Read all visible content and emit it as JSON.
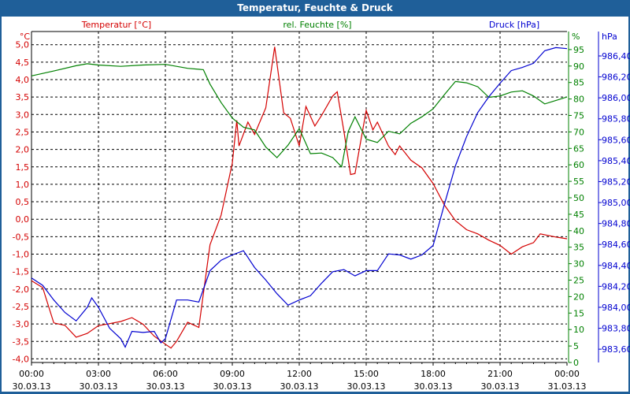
{
  "window": {
    "title": "Temperatur, Feuchte & Druck"
  },
  "chart_data": {
    "type": "line",
    "title": "Temperatur, Feuchte & Druck",
    "xlabel": "",
    "x_unit": "hours since 30.03.13 00:00",
    "xlim": [
      0,
      24
    ],
    "x_ticks": [
      {
        "h": 0,
        "time": "00:00",
        "date": "30.03.13"
      },
      {
        "h": 3,
        "time": "03:00",
        "date": "30.03.13"
      },
      {
        "h": 6,
        "time": "06:00",
        "date": "30.03.13"
      },
      {
        "h": 9,
        "time": "09:00",
        "date": "30.03.13"
      },
      {
        "h": 12,
        "time": "12:00",
        "date": "30.03.13"
      },
      {
        "h": 15,
        "time": "15:00",
        "date": "30.03.13"
      },
      {
        "h": 18,
        "time": "18:00",
        "date": "30.03.13"
      },
      {
        "h": 21,
        "time": "21:00",
        "date": "30.03.13"
      },
      {
        "h": 24,
        "time": "00:00",
        "date": "31.03.13"
      }
    ],
    "grid": true,
    "axes": {
      "temp": {
        "unit": "°C",
        "ylim": [
          -4.0,
          5.0
        ],
        "ticks": [
          "5,0",
          "4,5",
          "4,0",
          "3,5",
          "3,0",
          "2,5",
          "2,0",
          "1,5",
          "1,0",
          "0,5",
          "0,0",
          "-0,5",
          "-1,0",
          "-1,5",
          "-2,0",
          "-2,5",
          "-3,0",
          "-3,5",
          "-4,0"
        ],
        "tick_values": [
          5,
          4.5,
          4,
          3.5,
          3,
          2.5,
          2,
          1.5,
          1,
          0.5,
          0,
          -0.5,
          -1,
          -1.5,
          -2,
          -2.5,
          -3,
          -3.5,
          -4
        ]
      },
      "hum": {
        "unit": "%",
        "ylim": [
          0,
          95
        ],
        "ticks": [
          "95",
          "90",
          "85",
          "80",
          "75",
          "70",
          "65",
          "60",
          "55",
          "50",
          "45",
          "40",
          "35",
          "30",
          "25",
          "20",
          "15",
          "10",
          "5",
          "0"
        ],
        "tick_values": [
          95,
          90,
          85,
          80,
          75,
          70,
          65,
          60,
          55,
          50,
          45,
          40,
          35,
          30,
          25,
          20,
          15,
          10,
          5,
          0
        ]
      },
      "press": {
        "unit": "hPa",
        "ylim": [
          983.6,
          986.4
        ],
        "ticks": [
          "986,40",
          "986,20",
          "986,00",
          "985,80",
          "985,60",
          "985,40",
          "985,20",
          "985,00",
          "984,80",
          "984,60",
          "984,40",
          "984,20",
          "984,00",
          "983,80",
          "983,60"
        ],
        "tick_values": [
          986.4,
          986.2,
          986.0,
          985.8,
          985.6,
          985.4,
          985.2,
          985.0,
          984.8,
          984.6,
          984.4,
          984.2,
          984.0,
          983.8,
          983.6
        ]
      }
    },
    "series": [
      {
        "name": "Temperatur [°C]",
        "axis": "temp",
        "color": "#d40000",
        "points": [
          [
            0,
            -1.76
          ],
          [
            0.5,
            -1.96
          ],
          [
            1,
            -2.97
          ],
          [
            1.5,
            -3.04
          ],
          [
            2,
            -3.38
          ],
          [
            2.5,
            -3.27
          ],
          [
            3,
            -3.05
          ],
          [
            3.5,
            -2.99
          ],
          [
            4,
            -2.93
          ],
          [
            4.5,
            -2.82
          ],
          [
            5,
            -3.01
          ],
          [
            5.5,
            -3.35
          ],
          [
            6,
            -3.58
          ],
          [
            6.25,
            -3.69
          ],
          [
            6.5,
            -3.5
          ],
          [
            7,
            -2.95
          ],
          [
            7.5,
            -3.1
          ],
          [
            7.7,
            -2.14
          ],
          [
            8,
            -0.73
          ],
          [
            8.5,
            0.12
          ],
          [
            9,
            1.61
          ],
          [
            9.2,
            2.83
          ],
          [
            9.3,
            2.1
          ],
          [
            9.7,
            2.78
          ],
          [
            10,
            2.43
          ],
          [
            10.5,
            3.19
          ],
          [
            10.9,
            4.94
          ],
          [
            11.3,
            3.05
          ],
          [
            11.6,
            2.89
          ],
          [
            12,
            2.1
          ],
          [
            12.3,
            3.23
          ],
          [
            12.7,
            2.67
          ],
          [
            13,
            2.97
          ],
          [
            13.5,
            3.53
          ],
          [
            13.7,
            3.65
          ],
          [
            14,
            2.52
          ],
          [
            14.3,
            1.28
          ],
          [
            14.5,
            1.31
          ],
          [
            15,
            3.12
          ],
          [
            15.3,
            2.56
          ],
          [
            15.5,
            2.78
          ],
          [
            16,
            2.1
          ],
          [
            16.3,
            1.85
          ],
          [
            16.5,
            2.1
          ],
          [
            17,
            1.69
          ],
          [
            17.5,
            1.47
          ],
          [
            18,
            1.02
          ],
          [
            18.5,
            0.41
          ],
          [
            19,
            -0.04
          ],
          [
            19.5,
            -0.3
          ],
          [
            20,
            -0.42
          ],
          [
            20.5,
            -0.6
          ],
          [
            21,
            -0.75
          ],
          [
            21.5,
            -1.0
          ],
          [
            22,
            -0.79
          ],
          [
            22.5,
            -0.67
          ],
          [
            22.8,
            -0.42
          ],
          [
            23.5,
            -0.51
          ],
          [
            24,
            -0.56
          ]
        ]
      },
      {
        "name": "rel. Feuchte [%]",
        "axis": "hum",
        "color": "#008000",
        "points": [
          [
            0,
            87
          ],
          [
            1,
            88.5
          ],
          [
            2,
            90.1
          ],
          [
            2.5,
            90.7
          ],
          [
            3,
            90.3
          ],
          [
            4,
            89.9
          ],
          [
            5,
            90.3
          ],
          [
            6,
            90.5
          ],
          [
            7,
            89.3
          ],
          [
            7.7,
            88.9
          ],
          [
            8,
            84.5
          ],
          [
            8.5,
            78.9
          ],
          [
            9,
            74.2
          ],
          [
            9.5,
            71.4
          ],
          [
            10,
            70.6
          ],
          [
            10.5,
            65.4
          ],
          [
            11,
            62.2
          ],
          [
            11.5,
            66
          ],
          [
            12,
            71
          ],
          [
            12.5,
            63.4
          ],
          [
            13,
            63.6
          ],
          [
            13.5,
            62.2
          ],
          [
            13.9,
            59.4
          ],
          [
            14.2,
            70.2
          ],
          [
            14.5,
            74.6
          ],
          [
            15,
            67.8
          ],
          [
            15.5,
            66.8
          ],
          [
            16,
            70.2
          ],
          [
            16.5,
            69.4
          ],
          [
            17,
            72.6
          ],
          [
            17.5,
            74.6
          ],
          [
            18,
            77
          ],
          [
            18.5,
            81.3
          ],
          [
            19,
            85.3
          ],
          [
            19.5,
            84.9
          ],
          [
            20,
            83.7
          ],
          [
            20.5,
            80.5
          ],
          [
            21,
            80.9
          ],
          [
            21.5,
            82.1
          ],
          [
            22,
            82.5
          ],
          [
            22.5,
            80.9
          ],
          [
            23,
            78.5
          ],
          [
            24,
            80.6
          ]
        ]
      },
      {
        "name": "Druck [hPa]",
        "axis": "press",
        "color": "#0000d0",
        "points": [
          [
            0,
            984.28
          ],
          [
            0.5,
            984.21
          ],
          [
            1,
            984.07
          ],
          [
            1.5,
            983.95
          ],
          [
            2,
            983.87
          ],
          [
            2.5,
            984.0
          ],
          [
            2.7,
            984.09
          ],
          [
            3,
            984.0
          ],
          [
            3.5,
            983.8
          ],
          [
            4,
            983.7
          ],
          [
            4.2,
            983.62
          ],
          [
            4.5,
            983.77
          ],
          [
            5,
            983.76
          ],
          [
            5.5,
            983.77
          ],
          [
            5.8,
            983.66
          ],
          [
            6,
            983.7
          ],
          [
            6.5,
            984.07
          ],
          [
            7,
            984.07
          ],
          [
            7.5,
            984.05
          ],
          [
            8,
            984.35
          ],
          [
            8.5,
            984.45
          ],
          [
            9,
            984.5
          ],
          [
            9.5,
            984.54
          ],
          [
            10,
            984.38
          ],
          [
            10.5,
            984.26
          ],
          [
            11,
            984.13
          ],
          [
            11.5,
            984.02
          ],
          [
            12,
            984.07
          ],
          [
            12.5,
            984.11
          ],
          [
            13,
            984.23
          ],
          [
            13.5,
            984.34
          ],
          [
            14,
            984.36
          ],
          [
            14.5,
            984.3
          ],
          [
            15,
            984.35
          ],
          [
            15.5,
            984.35
          ],
          [
            16,
            984.51
          ],
          [
            16.5,
            984.5
          ],
          [
            17,
            984.46
          ],
          [
            17.5,
            984.5
          ],
          [
            18,
            984.59
          ],
          [
            18.5,
            984.98
          ],
          [
            19,
            985.35
          ],
          [
            19.5,
            985.63
          ],
          [
            20,
            985.86
          ],
          [
            20.5,
            986.01
          ],
          [
            21,
            986.14
          ],
          [
            21.5,
            986.26
          ],
          [
            22,
            986.29
          ],
          [
            22.5,
            986.33
          ],
          [
            23,
            986.45
          ],
          [
            23.5,
            986.48
          ],
          [
            24,
            986.47
          ]
        ]
      }
    ]
  }
}
